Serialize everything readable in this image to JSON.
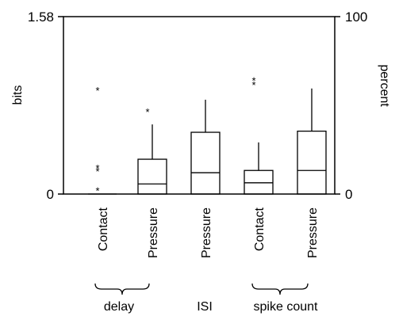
{
  "chart_data": {
    "type": "box",
    "left_axis": {
      "label": "bits",
      "range": [
        0,
        1.58
      ],
      "tick_labels": [
        "0",
        "1.58"
      ]
    },
    "right_axis": {
      "label": "percent",
      "range": [
        0,
        100
      ],
      "tick_labels": [
        "0",
        "100"
      ]
    },
    "boxes": [
      {
        "label": "Contact",
        "group": "delay",
        "min": 0,
        "q1": 0,
        "median": 0,
        "q3": 0,
        "max": 0,
        "outliers": [
          0.04,
          0.21,
          0.24,
          0.93
        ]
      },
      {
        "label": "Pressure",
        "group": "delay",
        "min": 0,
        "q1": 0,
        "median": 0.09,
        "q3": 0.31,
        "max": 0.62,
        "outliers": [
          0.74
        ]
      },
      {
        "label": "Pressure",
        "group": "ISI",
        "min": 0,
        "q1": 0,
        "median": 0.19,
        "q3": 0.55,
        "max": 0.84,
        "outliers": []
      },
      {
        "label": "Contact",
        "group": "spike count",
        "min": 0,
        "q1": 0,
        "median": 0.1,
        "q3": 0.21,
        "max": 0.46,
        "outliers": [
          0.98,
          1.02
        ]
      },
      {
        "label": "Pressure",
        "group": "spike count",
        "min": 0,
        "q1": 0,
        "median": 0.21,
        "q3": 0.56,
        "max": 0.94,
        "outliers": []
      }
    ],
    "groups": [
      "delay",
      "ISI",
      "spike count"
    ]
  }
}
